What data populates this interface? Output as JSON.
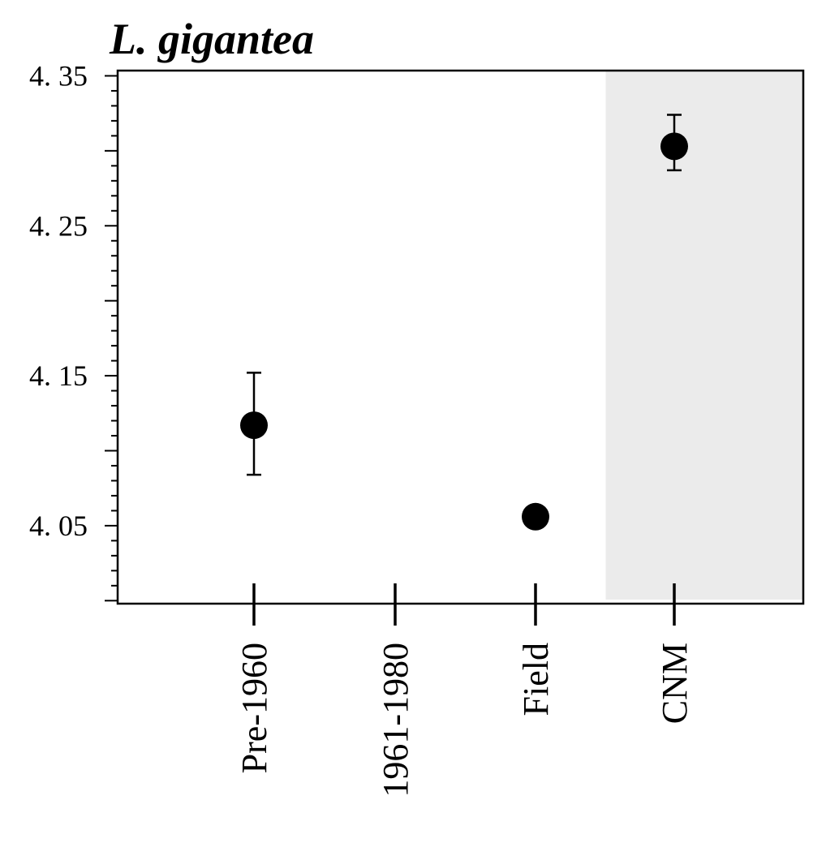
{
  "chart_data": {
    "type": "scatter",
    "title": "L. gigantea",
    "xlabel": "",
    "ylabel": "",
    "categories": [
      "Pre-1960",
      "1961-1980",
      "Field",
      "CNM"
    ],
    "y_ticks": [
      "4. 35",
      "4. 25",
      "4. 15",
      "4. 05"
    ],
    "y_tick_values": [
      4.35,
      4.25,
      4.15,
      4.05
    ],
    "ylim": [
      3.998,
      4.3535
    ],
    "grid": false,
    "legend": "none",
    "shaded_category": "CNM",
    "shade_color": "#ebebeb",
    "point_color": "#000000",
    "points": [
      {
        "category": "Pre-1960",
        "y": 4.117,
        "lower": 4.084,
        "upper": 4.152
      },
      {
        "category": "Field",
        "y": 4.056,
        "lower": 4.05,
        "upper": 4.062
      },
      {
        "category": "CNM",
        "y": 4.303,
        "lower": 4.287,
        "upper": 4.324
      }
    ]
  }
}
